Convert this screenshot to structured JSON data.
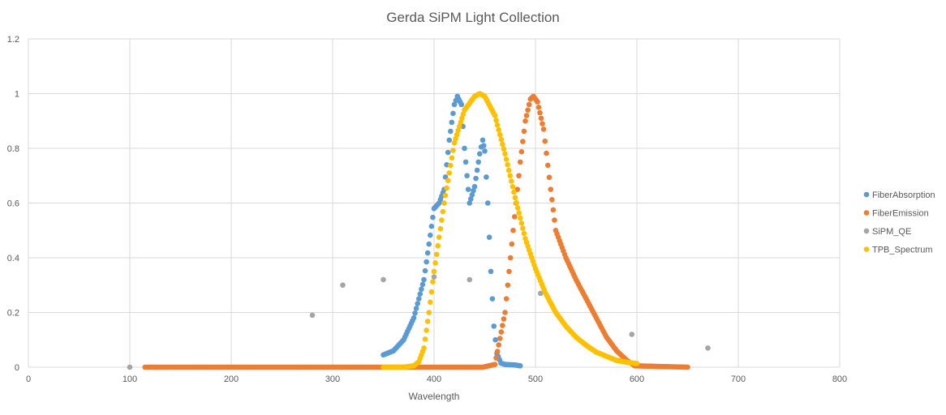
{
  "chart_data": {
    "type": "scatter",
    "title": "Gerda SiPM Light Collection",
    "xlabel": "Wavelength",
    "ylabel": "",
    "xlim": [
      0,
      800
    ],
    "ylim": [
      0,
      1.2
    ],
    "xticks": [
      "0",
      "100",
      "200",
      "300",
      "400",
      "500",
      "600",
      "700",
      "800"
    ],
    "yticks": [
      "0",
      "0.2",
      "0.4",
      "0.6",
      "0.8",
      "1",
      "1.2"
    ],
    "grid": true,
    "legend_position": "right",
    "series": [
      {
        "name": "FiberAbsorption",
        "color": "#5b9bd5",
        "points": [
          [
            350,
            0.045
          ],
          [
            360,
            0.06
          ],
          [
            370,
            0.1
          ],
          [
            380,
            0.18
          ],
          [
            390,
            0.32
          ],
          [
            395,
            0.45
          ],
          [
            400,
            0.58
          ],
          [
            405,
            0.6
          ],
          [
            410,
            0.65
          ],
          [
            415,
            0.83
          ],
          [
            420,
            0.96
          ],
          [
            423,
            0.99
          ],
          [
            427,
            0.96
          ],
          [
            430,
            0.8
          ],
          [
            435,
            0.6
          ],
          [
            440,
            0.66
          ],
          [
            445,
            0.78
          ],
          [
            448,
            0.83
          ],
          [
            450,
            0.79
          ],
          [
            453,
            0.6
          ],
          [
            456,
            0.35
          ],
          [
            459,
            0.15
          ],
          [
            462,
            0.05
          ],
          [
            466,
            0.015
          ],
          [
            470,
            0.01
          ],
          [
            480,
            0.008
          ],
          [
            485,
            0.005
          ]
        ]
      },
      {
        "name": "FiberEmission",
        "color": "#ed7d31",
        "points": [
          [
            115,
            0
          ],
          [
            448,
            0
          ],
          [
            460,
            0.01
          ],
          [
            470,
            0.2
          ],
          [
            478,
            0.5
          ],
          [
            485,
            0.75
          ],
          [
            490,
            0.9
          ],
          [
            495,
            0.98
          ],
          [
            498,
            0.99
          ],
          [
            502,
            0.97
          ],
          [
            508,
            0.87
          ],
          [
            515,
            0.65
          ],
          [
            520,
            0.5
          ],
          [
            530,
            0.4
          ],
          [
            540,
            0.32
          ],
          [
            550,
            0.25
          ],
          [
            560,
            0.18
          ],
          [
            570,
            0.11
          ],
          [
            580,
            0.06
          ],
          [
            590,
            0.025
          ],
          [
            598,
            0.005
          ],
          [
            650,
            0
          ]
        ]
      },
      {
        "name": "SiPM_QE",
        "color": "#a5a5a5",
        "points": [
          [
            100,
            0
          ],
          [
            280,
            0.19
          ],
          [
            310,
            0.3
          ],
          [
            350,
            0.32
          ],
          [
            400,
            0.33
          ],
          [
            435,
            0.32
          ],
          [
            505,
            0.27
          ],
          [
            595,
            0.12
          ],
          [
            670,
            0.07
          ]
        ]
      },
      {
        "name": "TPB_Spectrum",
        "color": "#ffc000",
        "points": [
          [
            350,
            0
          ],
          [
            370,
            0
          ],
          [
            380,
            0.005
          ],
          [
            385,
            0.02
          ],
          [
            390,
            0.07
          ],
          [
            395,
            0.2
          ],
          [
            400,
            0.35
          ],
          [
            410,
            0.6
          ],
          [
            420,
            0.82
          ],
          [
            430,
            0.94
          ],
          [
            440,
            0.99
          ],
          [
            445,
            1.0
          ],
          [
            450,
            0.99
          ],
          [
            460,
            0.92
          ],
          [
            470,
            0.78
          ],
          [
            480,
            0.62
          ],
          [
            490,
            0.47
          ],
          [
            500,
            0.36
          ],
          [
            510,
            0.27
          ],
          [
            520,
            0.2
          ],
          [
            530,
            0.15
          ],
          [
            540,
            0.11
          ],
          [
            550,
            0.08
          ],
          [
            560,
            0.055
          ],
          [
            570,
            0.04
          ],
          [
            580,
            0.025
          ],
          [
            590,
            0.018
          ],
          [
            600,
            0.013
          ]
        ]
      }
    ]
  }
}
